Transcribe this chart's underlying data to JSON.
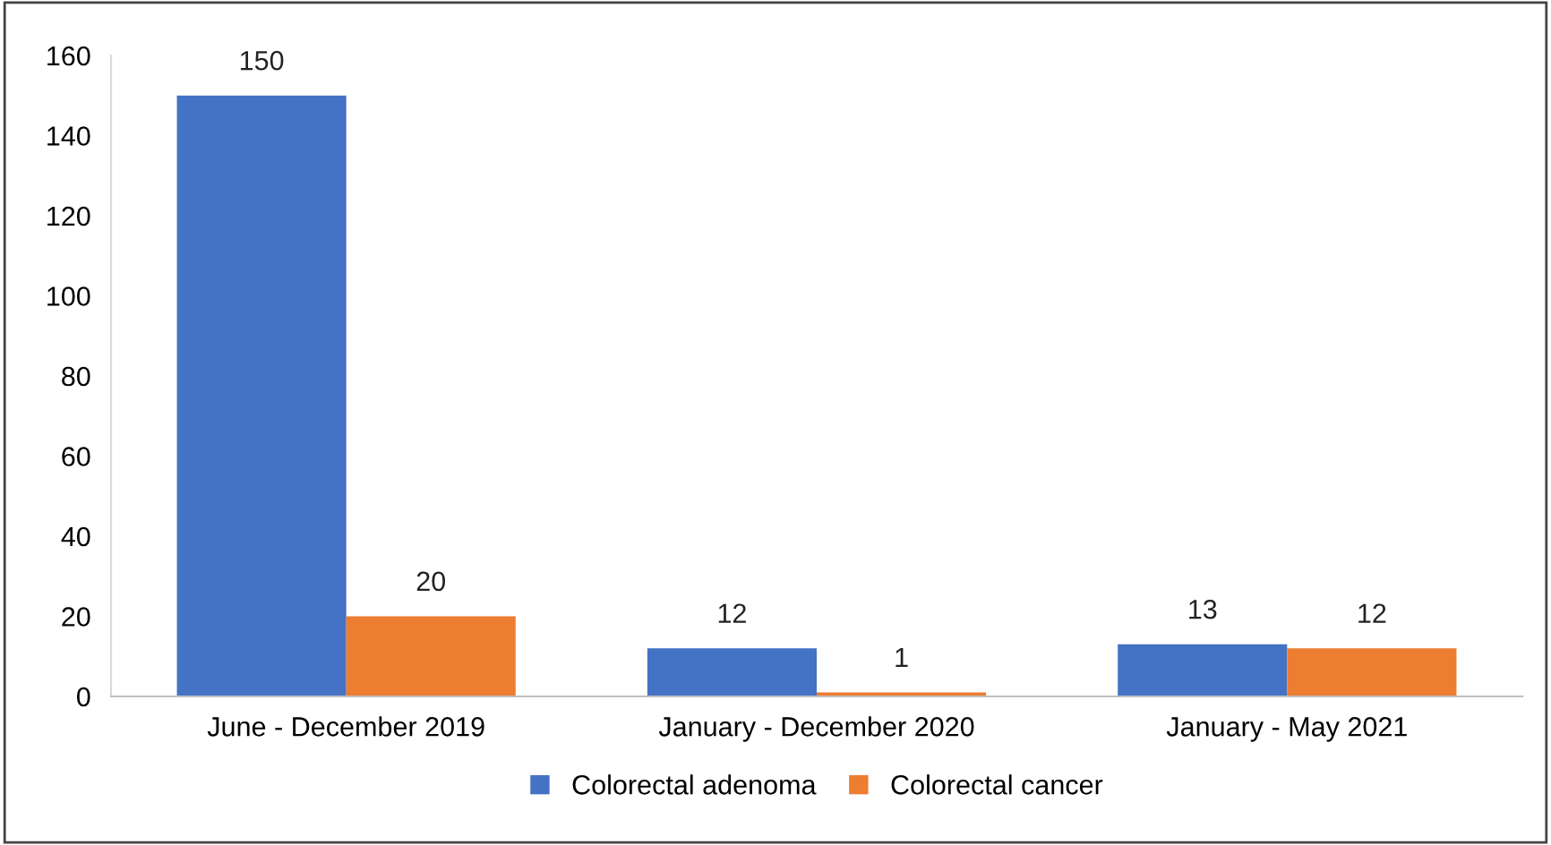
{
  "chart_data": {
    "type": "bar",
    "categories": [
      "June - December 2019",
      "January - December 2020",
      "January - May 2021"
    ],
    "series": [
      {
        "name": "Colorectal adenoma",
        "color": "#4472c4",
        "values": [
          150,
          12,
          13
        ]
      },
      {
        "name": "Colorectal cancer",
        "color": "#ed7d31",
        "values": [
          20,
          1,
          12
        ]
      }
    ],
    "ylim": [
      0,
      160
    ],
    "yticks": [
      0,
      20,
      40,
      60,
      80,
      100,
      120,
      140,
      160
    ],
    "data_labels": true,
    "grid": false,
    "legend": "bottom"
  }
}
